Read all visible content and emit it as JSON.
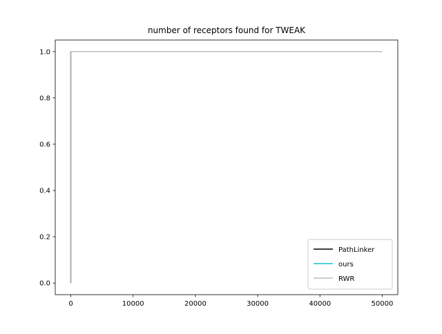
{
  "chart_data": {
    "type": "line",
    "title": "number of receptors found for TWEAK",
    "xlabel": "",
    "ylabel": "",
    "xlim": [
      -2500,
      52500
    ],
    "ylim": [
      -0.05,
      1.05
    ],
    "x_ticks": [
      0,
      10000,
      20000,
      30000,
      40000,
      50000
    ],
    "y_ticks": [
      0.0,
      0.2,
      0.4,
      0.6,
      0.8,
      1.0
    ],
    "x_tick_labels": [
      "0",
      "10000",
      "20000",
      "30000",
      "40000",
      "50000"
    ],
    "y_tick_labels": [
      "0.0",
      "0.2",
      "0.4",
      "0.6",
      "0.8",
      "1.0"
    ],
    "grid": false,
    "legend_position": "lower-right",
    "series": [
      {
        "name": "PathLinker",
        "color": "#000000",
        "x": [
          0,
          0,
          2000
        ],
        "y": [
          0,
          1,
          1
        ]
      },
      {
        "name": "ours",
        "color": "#17becf",
        "x": [
          0,
          0,
          50000
        ],
        "y": [
          0,
          1,
          1
        ]
      },
      {
        "name": "RWR",
        "color": "#bbbbbb",
        "x": [
          0,
          0,
          50000
        ],
        "y": [
          0,
          1,
          1
        ]
      }
    ]
  }
}
